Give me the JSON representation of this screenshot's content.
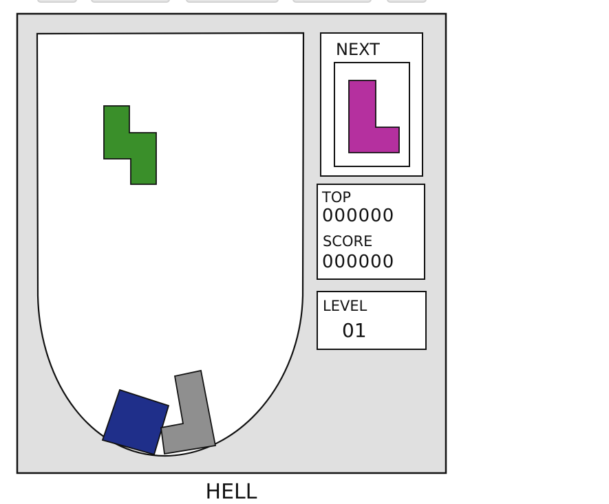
{
  "comic": {
    "caption": "HELL"
  },
  "sidebar": {
    "next_label": "NEXT",
    "top_label": "TOP",
    "top_value": "000000",
    "score_label": "SCORE",
    "score_value": "000000",
    "level_label": "LEVEL",
    "level_value": "01"
  },
  "pieces": {
    "falling": {
      "name": "S-tetromino",
      "color": "#3a8f2a"
    },
    "next": {
      "name": "L-tetromino",
      "color": "#b5309f"
    },
    "bottom_left": {
      "name": "O-tetromino",
      "color": "#1f2f8a"
    },
    "bottom_right": {
      "name": "L-tetromino",
      "color": "#8f8f8f"
    }
  },
  "colors": {
    "panel_bg": "#e0e0e0",
    "ink": "#111111"
  }
}
